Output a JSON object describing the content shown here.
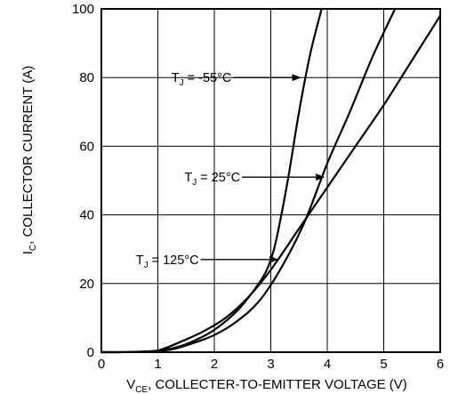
{
  "chart_data": {
    "type": "line",
    "xlabel": {
      "main": "V",
      "sub": "CE",
      "rest": ", COLLECTER-TO-EMITTER VOLTAGE (V)"
    },
    "ylabel": {
      "main": "I",
      "sub": "C",
      "rest": ", COLLECTOR CURRENT (A)"
    },
    "xlim": [
      0,
      6
    ],
    "ylim": [
      0,
      100
    ],
    "x_ticks": [
      0,
      1,
      2,
      3,
      4,
      5,
      6
    ],
    "y_ticks": [
      0,
      20,
      40,
      60,
      80,
      100
    ],
    "grid": true,
    "series": [
      {
        "name": "T_J = -55°C",
        "label": {
          "main": "T",
          "sub": "J",
          "rest": " = -55°C"
        },
        "x": [
          0,
          0.5,
          1.0,
          1.3,
          1.6,
          2.0,
          2.4,
          2.7,
          2.9,
          3.0,
          3.1,
          3.3,
          3.5,
          3.7,
          3.9
        ],
        "y": [
          0,
          0.05,
          0.4,
          1.3,
          3,
          6.5,
          12,
          18,
          23,
          27,
          33,
          50,
          70,
          87,
          100
        ]
      },
      {
        "name": "T_J = 25°C",
        "label": {
          "main": "T",
          "sub": "J",
          "rest": " = 25°C"
        },
        "x": [
          0,
          0.5,
          1.0,
          1.3,
          1.6,
          2.0,
          2.4,
          2.8,
          3.2,
          3.6,
          4.0,
          4.4,
          4.8,
          5.2
        ],
        "y": [
          0,
          0.05,
          0.3,
          1,
          2.5,
          5,
          9,
          15,
          25,
          38,
          55,
          70,
          86,
          100
        ]
      },
      {
        "name": "T_J = 125°C",
        "label": {
          "main": "T",
          "sub": "J",
          "rest": " = 125°C"
        },
        "x": [
          0,
          0.5,
          0.9,
          1.1,
          1.4,
          1.8,
          2.2,
          2.6,
          3.0,
          3.5,
          4.0,
          4.5,
          5.0,
          5.5,
          6.0
        ],
        "y": [
          0,
          0.05,
          0.3,
          1,
          3,
          6,
          10,
          16,
          24,
          36,
          48,
          60,
          72,
          85,
          98
        ]
      }
    ],
    "annotations": [
      {
        "series": 0,
        "label_at": [
          1.24,
          80
        ],
        "arrow_to": [
          3.52,
          80
        ]
      },
      {
        "series": 1,
        "label_at": [
          1.47,
          51
        ],
        "arrow_to": [
          3.94,
          51
        ]
      },
      {
        "series": 2,
        "label_at": [
          0.61,
          27
        ],
        "arrow_to": [
          3.12,
          27
        ]
      }
    ],
    "colors": {
      "line": "#000000",
      "grid": "#000000",
      "background": "#ffffff"
    }
  }
}
